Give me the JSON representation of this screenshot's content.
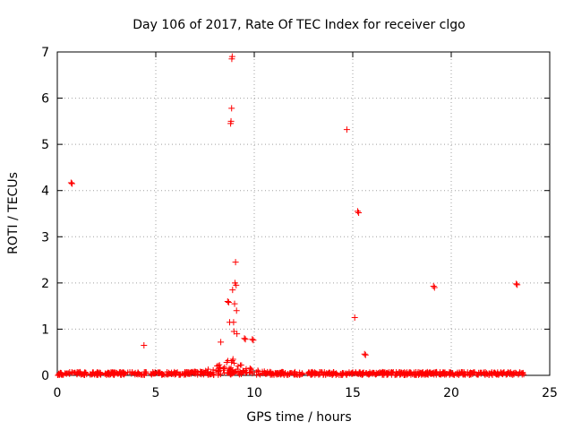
{
  "chart_data": {
    "type": "scatter",
    "title": "Day 106 of 2017, Rate Of TEC Index for receiver clgo",
    "xlabel": "GPS time / hours",
    "ylabel": "ROTI / TECUs",
    "xlim": [
      0,
      25
    ],
    "ylim": [
      0,
      7
    ],
    "xticks": [
      "0",
      "5",
      "10",
      "15",
      "20",
      "25"
    ],
    "yticks": [
      "0",
      "1",
      "2",
      "3",
      "4",
      "5",
      "6",
      "7"
    ],
    "grid": true,
    "marker": "+",
    "color": "#ff0000",
    "series": [
      {
        "name": "ROTI",
        "points": [
          [
            0.7,
            4.17
          ],
          [
            0.75,
            4.15
          ],
          [
            4.4,
            0.65
          ],
          [
            8.3,
            0.72
          ],
          [
            8.6,
            0.28
          ],
          [
            8.65,
            1.6
          ],
          [
            8.7,
            1.58
          ],
          [
            8.75,
            1.15
          ],
          [
            8.8,
            5.45
          ],
          [
            8.82,
            5.5
          ],
          [
            8.85,
            5.78
          ],
          [
            8.86,
            6.85
          ],
          [
            8.88,
            6.9
          ],
          [
            8.9,
            1.85
          ],
          [
            8.92,
            0.35
          ],
          [
            8.95,
            1.15
          ],
          [
            8.97,
            0.95
          ],
          [
            9.0,
            1.55
          ],
          [
            9.02,
            2.0
          ],
          [
            9.05,
            2.45
          ],
          [
            9.08,
            1.95
          ],
          [
            9.1,
            1.4
          ],
          [
            9.12,
            0.9
          ],
          [
            9.5,
            0.8
          ],
          [
            9.55,
            0.78
          ],
          [
            9.9,
            0.78
          ],
          [
            9.95,
            0.76
          ],
          [
            14.7,
            5.32
          ],
          [
            15.1,
            1.25
          ],
          [
            15.25,
            3.55
          ],
          [
            15.3,
            3.52
          ],
          [
            15.6,
            0.46
          ],
          [
            15.65,
            0.44
          ],
          [
            19.1,
            1.93
          ],
          [
            19.15,
            1.9
          ],
          [
            23.3,
            1.98
          ],
          [
            23.35,
            1.96
          ]
        ]
      }
    ],
    "noise_band": {
      "x_range": [
        0,
        23.7
      ],
      "baseline_max": 0.08,
      "bump_center": 8.8,
      "bump_width": 1.0,
      "bump_height": 0.35
    }
  }
}
